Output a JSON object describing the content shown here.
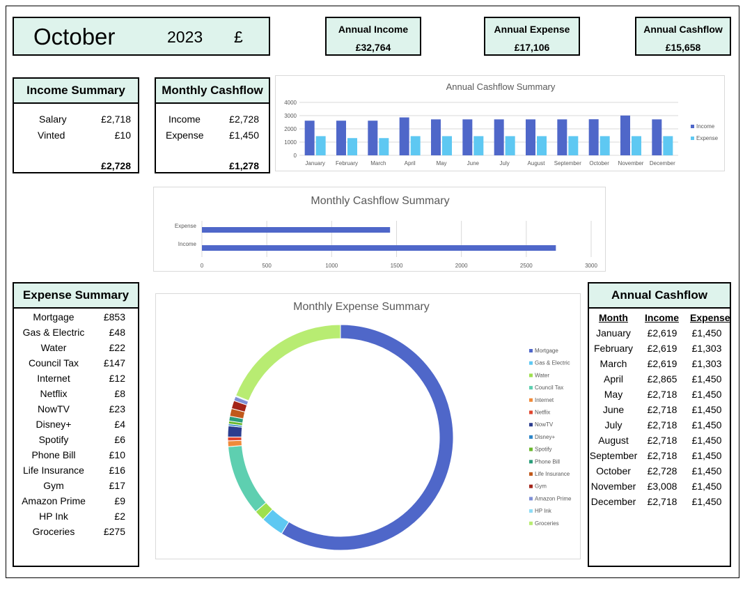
{
  "header": {
    "month": "October",
    "year": "2023",
    "currency": "£"
  },
  "kpis": [
    {
      "label": "Annual Income",
      "value": "£32,764"
    },
    {
      "label": "Annual Expense",
      "value": "£17,106"
    },
    {
      "label": "Annual Cashflow",
      "value": "£15,658"
    }
  ],
  "income_summary": {
    "title": "Income Summary",
    "items": [
      {
        "label": "Salary",
        "value": "£2,718"
      },
      {
        "label": "Vinted",
        "value": "£10"
      }
    ],
    "total": "£2,728"
  },
  "monthly_cashflow": {
    "title": "Monthly Cashflow",
    "items": [
      {
        "label": "Income",
        "value": "£2,728"
      },
      {
        "label": "Expense",
        "value": "£1,450"
      }
    ],
    "total": "£1,278"
  },
  "expense_summary": {
    "title": "Expense Summary",
    "items": [
      {
        "label": "Mortgage",
        "value": "£853"
      },
      {
        "label": "Gas & Electric",
        "value": "£48"
      },
      {
        "label": "Water",
        "value": "£22"
      },
      {
        "label": "Council Tax",
        "value": "£147"
      },
      {
        "label": "Internet",
        "value": "£12"
      },
      {
        "label": "Netflix",
        "value": "£8"
      },
      {
        "label": "NowTV",
        "value": "£23"
      },
      {
        "label": "Disney+",
        "value": "£4"
      },
      {
        "label": "Spotify",
        "value": "£6"
      },
      {
        "label": "Phone Bill",
        "value": "£10"
      },
      {
        "label": "Life Insurance",
        "value": "£16"
      },
      {
        "label": "Gym",
        "value": "£17"
      },
      {
        "label": "Amazon Prime",
        "value": "£9"
      },
      {
        "label": "HP Ink",
        "value": "£2"
      },
      {
        "label": "Groceries",
        "value": "£275"
      }
    ]
  },
  "annual_cashflow_table": {
    "title": "Annual Cashflow",
    "headers": [
      "Month",
      "Income",
      "Expense"
    ],
    "rows": [
      [
        "January",
        "£2,619",
        "£1,450"
      ],
      [
        "February",
        "£2,619",
        "£1,303"
      ],
      [
        "March",
        "£2,619",
        "£1,303"
      ],
      [
        "April",
        "£2,865",
        "£1,450"
      ],
      [
        "May",
        "£2,718",
        "£1,450"
      ],
      [
        "June",
        "£2,718",
        "£1,450"
      ],
      [
        "July",
        "£2,718",
        "£1,450"
      ],
      [
        "August",
        "£2,718",
        "£1,450"
      ],
      [
        "September",
        "£2,718",
        "£1,450"
      ],
      [
        "October",
        "£2,728",
        "£1,450"
      ],
      [
        "November",
        "£3,008",
        "£1,450"
      ],
      [
        "December",
        "£2,718",
        "£1,450"
      ]
    ]
  },
  "chart_data": [
    {
      "type": "bar",
      "title": "Annual Cashflow Summary",
      "categories": [
        "January",
        "February",
        "March",
        "April",
        "May",
        "June",
        "July",
        "August",
        "September",
        "October",
        "November",
        "December"
      ],
      "series": [
        {
          "name": "Income",
          "color": "#4f67c9",
          "values": [
            2619,
            2619,
            2619,
            2865,
            2718,
            2718,
            2718,
            2718,
            2718,
            2728,
            3008,
            2718
          ]
        },
        {
          "name": "Expense",
          "color": "#5ec8f2",
          "values": [
            1450,
            1303,
            1303,
            1450,
            1450,
            1450,
            1450,
            1450,
            1450,
            1450,
            1450,
            1450
          ]
        }
      ],
      "yticks": [
        0,
        1000,
        2000,
        3000,
        4000
      ],
      "ylim": [
        0,
        4000
      ],
      "legend": "right",
      "grid": true
    },
    {
      "type": "bar",
      "orientation": "horizontal",
      "title": "Monthly Cashflow Summary",
      "categories": [
        "Expense",
        "Income"
      ],
      "values": [
        1450,
        2728
      ],
      "color": "#4f67c9",
      "xticks": [
        0,
        500,
        1000,
        1500,
        2000,
        2500,
        3000
      ],
      "xlim": [
        0,
        3000
      ],
      "grid": true
    },
    {
      "type": "pie",
      "variant": "doughnut",
      "title": "Monthly Expense Summary",
      "legend": "right",
      "slices": [
        {
          "label": "Mortgage",
          "value": 853,
          "color": "#4f67c9"
        },
        {
          "label": "Gas & Electric",
          "value": 48,
          "color": "#5ec8f2"
        },
        {
          "label": "Water",
          "value": 22,
          "color": "#9ee04f"
        },
        {
          "label": "Council Tax",
          "value": 147,
          "color": "#5ecfb0"
        },
        {
          "label": "Internet",
          "value": 12,
          "color": "#f08a3a"
        },
        {
          "label": "Netflix",
          "value": 8,
          "color": "#e0462f"
        },
        {
          "label": "NowTV",
          "value": 23,
          "color": "#2c3d8f"
        },
        {
          "label": "Disney+",
          "value": 4,
          "color": "#2e86c8"
        },
        {
          "label": "Spotify",
          "value": 6,
          "color": "#6ab82f"
        },
        {
          "label": "Phone Bill",
          "value": 10,
          "color": "#2a9d7a"
        },
        {
          "label": "Life Insurance",
          "value": 16,
          "color": "#c0591b"
        },
        {
          "label": "Gym",
          "value": 17,
          "color": "#a32419"
        },
        {
          "label": "Amazon Prime",
          "value": 9,
          "color": "#7f8fd6"
        },
        {
          "label": "HP Ink",
          "value": 2,
          "color": "#8fdcf5"
        },
        {
          "label": "Groceries",
          "value": 275,
          "color": "#b8ec72"
        }
      ]
    }
  ]
}
